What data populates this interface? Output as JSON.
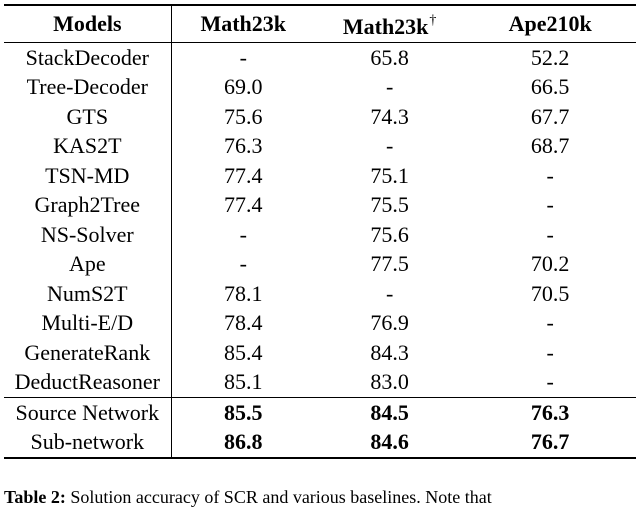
{
  "table": {
    "headers": [
      "Models",
      "Math23k",
      "Math23k",
      "Ape210k"
    ],
    "header_mark": "†",
    "rows": [
      {
        "model": "StackDecoder",
        "math23k": "-",
        "math23k_dagger": "65.8",
        "ape210k": "52.2"
      },
      {
        "model": "Tree-Decoder",
        "math23k": "69.0",
        "math23k_dagger": "-",
        "ape210k": "66.5"
      },
      {
        "model": "GTS",
        "math23k": "75.6",
        "math23k_dagger": "74.3",
        "ape210k": "67.7"
      },
      {
        "model": "KAS2T",
        "math23k": "76.3",
        "math23k_dagger": "-",
        "ape210k": "68.7"
      },
      {
        "model": "TSN-MD",
        "math23k": "77.4",
        "math23k_dagger": "75.1",
        "ape210k": "-"
      },
      {
        "model": "Graph2Tree",
        "math23k": "77.4",
        "math23k_dagger": "75.5",
        "ape210k": "-"
      },
      {
        "model": "NS-Solver",
        "math23k": "-",
        "math23k_dagger": "75.6",
        "ape210k": "-"
      },
      {
        "model": "Ape",
        "math23k": "-",
        "math23k_dagger": "77.5",
        "ape210k": "70.2"
      },
      {
        "model": "NumS2T",
        "math23k": "78.1",
        "math23k_dagger": "-",
        "ape210k": "70.5"
      },
      {
        "model": "Multi-E/D",
        "math23k": "78.4",
        "math23k_dagger": "76.9",
        "ape210k": "-"
      },
      {
        "model": "GenerateRank",
        "math23k": "85.4",
        "math23k_dagger": "84.3",
        "ape210k": "-"
      },
      {
        "model": "DeductReasoner",
        "math23k": "85.1",
        "math23k_dagger": "83.0",
        "ape210k": "-"
      }
    ],
    "highlight_rows": [
      {
        "model": "Source Network",
        "math23k": "85.5",
        "math23k_dagger": "84.5",
        "ape210k": "76.3"
      },
      {
        "model": "Sub-network",
        "math23k": "86.8",
        "math23k_dagger": "84.6",
        "ape210k": "76.7"
      }
    ]
  },
  "caption": {
    "label": "Table 2:",
    "text": "Solution accuracy of SCR and various baselines. Note that"
  }
}
